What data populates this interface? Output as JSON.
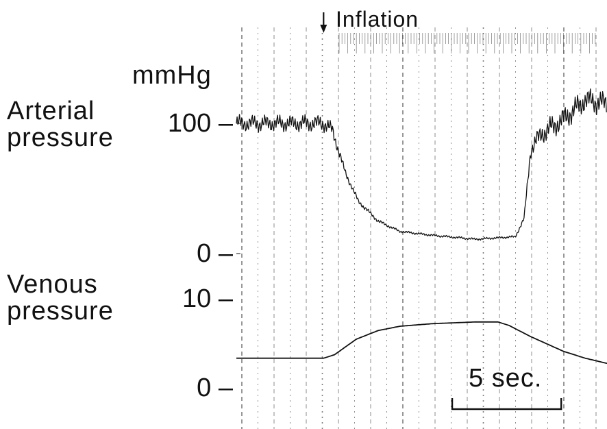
{
  "chart_data": [
    {
      "type": "line",
      "id": "arterial",
      "title": "",
      "ylabel": "Arterial pressure",
      "unit": "mmHg",
      "ylim": [
        0,
        150
      ],
      "yticks": [
        {
          "value": 100,
          "label": "100 –"
        },
        {
          "value": 0,
          "label": "0 –"
        }
      ],
      "x_unit": "sec",
      "xlim": [
        0,
        17
      ],
      "series": [
        {
          "x": [
            0,
            4.0,
            4.4,
            5.0,
            5.6,
            6.5,
            7.5,
            9,
            11,
            12.8,
            13.2,
            13.5,
            14.0,
            15,
            16,
            17
          ],
          "y": [
            100,
            100,
            95,
            62,
            40,
            25,
            17,
            14,
            11,
            13,
            27,
            80,
            92,
            103,
            118,
            115
          ],
          "pulse_amplitude": [
            14,
            14,
            12,
            6,
            4,
            3,
            2,
            2,
            2,
            2,
            4,
            14,
            18,
            20,
            20,
            20
          ]
        }
      ]
    },
    {
      "type": "line",
      "id": "venous",
      "title": "",
      "ylabel": "Venous pressure",
      "unit": "mmHg",
      "ylim": [
        0,
        10
      ],
      "yticks": [
        {
          "value": 10,
          "label": "10 –"
        },
        {
          "value": 0,
          "label": "0 –"
        }
      ],
      "x_unit": "sec",
      "xlim": [
        0,
        17
      ],
      "series": [
        {
          "x": [
            0,
            4.0,
            4.5,
            5.5,
            6.5,
            7.5,
            9,
            11,
            12.0,
            12.5,
            13.5,
            15,
            16,
            17
          ],
          "y": [
            3.2,
            3.2,
            3.6,
            5.4,
            6.4,
            6.9,
            7.2,
            7.4,
            7.4,
            7.0,
            5.7,
            4.0,
            3.2,
            2.6
          ]
        }
      ]
    }
  ],
  "annotations": {
    "inflation_label": "Inflation",
    "inflation_time_sec": 4.0,
    "scale_bar_label": "5 sec.",
    "scale_bar_seconds": 5,
    "scale_bar_start_sec": 9.9
  },
  "labels": {
    "unit": "mmHg",
    "arterial": [
      "Arterial",
      "pressure"
    ],
    "venous": [
      "Venous",
      "pressure"
    ]
  },
  "colors": {
    "trace": "#111111",
    "grid": "#555555",
    "background": "#ffffff"
  }
}
